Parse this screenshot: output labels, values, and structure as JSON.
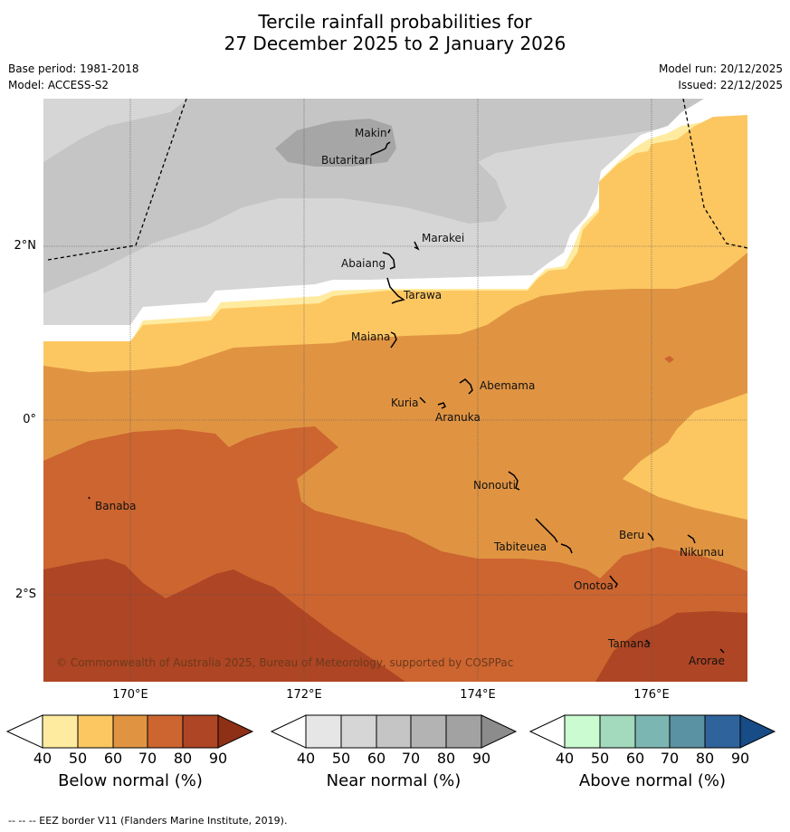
{
  "title_line1": "Tercile rainfall probabilities for",
  "title_line2": "27 December 2025 to 2 January 2026",
  "base_period": "Base period: 1981-2018",
  "model": "Model: ACCESS-S2",
  "model_run": "Model run: 20/12/2025",
  "issued": "Issued: 22/12/2025",
  "lat_labels": [
    "2°N",
    "0°",
    "2°S"
  ],
  "lon_labels": [
    "170°E",
    "172°E",
    "174°E",
    "176°E"
  ],
  "places": [
    "Makin",
    "Butaritari",
    "Marakei",
    "Abaiang",
    "Tarawa",
    "Maiana",
    "Abemama",
    "Kuria",
    "Aranuka",
    "Nonouti",
    "Banaba",
    "Beru",
    "Nikunau",
    "Tabiteuea",
    "Onotoa",
    "Tamana",
    "Arorae"
  ],
  "copyright": "© Commonwealth of Australia 2025, Bureau of Meteorology, supported by COSPPac",
  "legend": {
    "below": {
      "caption": "Below normal (%)",
      "colors": [
        "#ffeba0",
        "#fcc761",
        "#e09442",
        "#cc6530",
        "#ae4524",
        "#8d3016"
      ]
    },
    "near": {
      "caption": "Near normal (%)",
      "colors": [
        "#e6e6e6",
        "#d6d6d6",
        "#c5c5c5",
        "#b3b3b3",
        "#a2a2a2",
        "#8c8c8c"
      ]
    },
    "above": {
      "caption": "Above normal (%)",
      "colors": [
        "#cbfbd0",
        "#a3d9bd",
        "#7cb6b2",
        "#5b92a3",
        "#2f639b",
        "#174c86"
      ]
    },
    "ticks": [
      "40",
      "50",
      "60",
      "70",
      "80",
      "90"
    ]
  },
  "footer": "-- -- -- EEZ border V11 (Flanders Marine Institute, 2019)."
}
